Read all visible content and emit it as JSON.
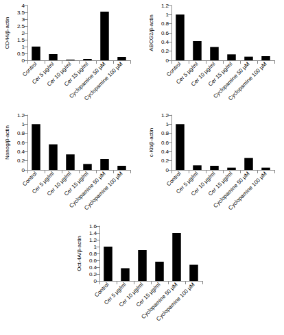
{
  "chart_data": [
    {
      "type": "bar",
      "ylabel": "CD44/β-actin",
      "categories": [
        "Control",
        "Cer 5 µg/ml",
        "Cer 10 µg/ml",
        "Cer 15 µg/ml",
        "Cyclopamine 50 µM",
        "Cyclopamine 100 µM"
      ],
      "values": [
        1.0,
        0.45,
        0.05,
        0.1,
        3.55,
        0.25
      ],
      "color": "#000000",
      "ylim": [
        0,
        4
      ],
      "yticks": [
        0,
        0.5,
        1,
        1.5,
        2,
        2.5,
        3,
        3.5,
        4
      ],
      "grid": false
    },
    {
      "type": "bar",
      "ylabel": "ABCG2/β-actin",
      "categories": [
        "Control",
        "Cer 5 µg/ml",
        "Cer 10 µg/ml",
        "Cer 15 µg/ml",
        "Cyclopamine 50 µM",
        "Cyclopamine 100 µM"
      ],
      "values": [
        1.0,
        0.42,
        0.29,
        0.13,
        0.08,
        0.09
      ],
      "color": "#000000",
      "ylim": [
        0,
        1.2
      ],
      "yticks": [
        0,
        0.2,
        0.4,
        0.6,
        0.8,
        1,
        1.2
      ],
      "grid": false
    },
    {
      "type": "bar",
      "ylabel": "Nanog/β-actin",
      "categories": [
        "Control",
        "Cer 5 µg/ml",
        "Cer 10 µg/ml",
        "Cer 15 µg/ml",
        "Cyclopamine 50 µM",
        "Cyclopamine 100 µM"
      ],
      "values": [
        1.0,
        0.56,
        0.34,
        0.13,
        0.24,
        0.09
      ],
      "color": "#000000",
      "ylim": [
        0,
        1.2
      ],
      "yticks": [
        0,
        0.2,
        0.4,
        0.6,
        0.8,
        1,
        1.2
      ],
      "grid": false
    },
    {
      "type": "bar",
      "ylabel": "c-Kit/β-actin",
      "categories": [
        "Control",
        "Cer 5 µg/ml",
        "Cer 10 µg/ml",
        "Cer 15 µg/ml",
        "Cyclopamine 50 µM",
        "Cyclopamine 100 µM"
      ],
      "values": [
        1.0,
        0.1,
        0.09,
        0.05,
        0.26,
        0.05
      ],
      "color": "#000000",
      "ylim": [
        0,
        1.2
      ],
      "yticks": [
        0,
        0.2,
        0.4,
        0.6,
        0.8,
        1,
        1.2
      ],
      "grid": false
    },
    {
      "type": "bar",
      "ylabel": "Oct-4A/β-actin",
      "categories": [
        "Control",
        "Cer 5 µg/ml",
        "Cer 10 µg/ml",
        "Cer 15 µg/ml",
        "Cyclopamine 50 µM",
        "Cyclopamine 100 µM"
      ],
      "values": [
        1.0,
        0.37,
        0.9,
        0.56,
        1.4,
        0.47
      ],
      "color": "#000000",
      "ylim": [
        0,
        1.6
      ],
      "yticks": [
        0,
        0.2,
        0.4,
        0.6,
        0.8,
        1,
        1.2,
        1.4,
        1.6
      ],
      "grid": false
    }
  ]
}
